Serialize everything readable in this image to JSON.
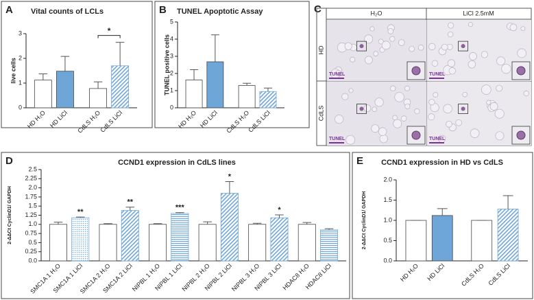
{
  "chart_data": [
    {
      "type": "bar",
      "panel": "A",
      "title": "Vital counts of LCLs",
      "y_label": "live cells",
      "categories": [
        "HD H₂O",
        "HD LiCl",
        "CdLS H₂O",
        "CdLS LiCl"
      ],
      "values": [
        1.12,
        1.48,
        0.78,
        1.7
      ],
      "errors": [
        0.25,
        0.6,
        0.27,
        0.95
      ],
      "colors": [
        "#ffffff",
        "#6fa6d8",
        "#ffffff",
        "#6fa6d8"
      ],
      "fill_styles": [
        "solid",
        "solid",
        "solid",
        "diagonal"
      ],
      "ylim": [
        0,
        3
      ],
      "yticks": [
        0,
        1,
        2,
        3
      ],
      "annotation": "*"
    },
    {
      "type": "bar",
      "panel": "B",
      "title": "TUNEL Apoptotic Assay",
      "y_label": "TUNEL positive cells",
      "categories": [
        "HD H₂O",
        "HD LiCl",
        "CdLS H₂O",
        "CdLS LiCl"
      ],
      "values": [
        1.62,
        2.68,
        1.3,
        0.95
      ],
      "errors": [
        0.6,
        1.57,
        0.13,
        0.2
      ],
      "colors": [
        "#ffffff",
        "#6fa6d8",
        "#ffffff",
        "#6fa6d8"
      ],
      "fill_styles": [
        "solid",
        "solid",
        "solid",
        "diagonal"
      ],
      "ylim": [
        0,
        5
      ],
      "yticks": [
        0,
        1,
        2,
        3,
        4,
        5
      ]
    },
    {
      "type": "bar",
      "panel": "D",
      "title": "CCND1 expression in CdLS  lines",
      "y_label": "2-ΔΔCt CyclinD1/ GAPDH",
      "categories": [
        "SMC1A 1 H₂O",
        "SMC1A 1 LiCl",
        "SMC1A 2 H₂O",
        "SMC1A 2 LiCl",
        "NIPBL 1 H₂O",
        "NIPBL 1 LiCl",
        "NIPBL 2 H₂O",
        "NIPBL 2 LiCl",
        "NIPBL 3 H₂O",
        "NIPBL 3 LiCl",
        "HDAC8 H₂O",
        "HDAC8 LiCl"
      ],
      "values": [
        1.0,
        1.18,
        1.0,
        1.38,
        1.0,
        1.3,
        1.0,
        1.85,
        1.0,
        1.18,
        1.0,
        0.85
      ],
      "errors": [
        0.06,
        0.02,
        0.02,
        0.09,
        0.02,
        0.02,
        0.07,
        0.32,
        0.03,
        0.08,
        0.05,
        0.03
      ],
      "colors": [
        "#ffffff",
        "#6fa6d8",
        "#ffffff",
        "#6fa6d8",
        "#ffffff",
        "#6fa6d8",
        "#ffffff",
        "#6fa6d8",
        "#ffffff",
        "#6fa6d8",
        "#ffffff",
        "#6fa6d8"
      ],
      "fill_styles": [
        "solid",
        "dotted",
        "solid",
        "diagonal",
        "solid",
        "horizontal",
        "solid",
        "diagonal",
        "solid",
        "diagonal",
        "solid",
        "horizontal"
      ],
      "significance": [
        null,
        "**",
        null,
        "**",
        null,
        "***",
        null,
        "*",
        null,
        "*",
        null,
        null
      ],
      "ylim": [
        0,
        2.5
      ],
      "yticks": [
        {
          "value": 0,
          "label": "0.0"
        },
        0.25,
        0.5,
        0.75,
        {
          "value": 1,
          "label": "1.0"
        },
        1.25,
        1.5,
        1.75,
        {
          "value": 2,
          "label": "2.0"
        },
        2.25,
        2.5
      ]
    },
    {
      "type": "bar",
      "panel": "E",
      "title": "CCND1 expression in HD vs CdLS",
      "y_label": "2-ΔΔCt CyclinD1/ GAPDH",
      "categories": [
        "HD H₂O",
        "HD LiCl",
        "CdLS H₂O",
        "CdLS LiCl"
      ],
      "values": [
        1.0,
        1.12,
        1.0,
        1.28
      ],
      "errors": [
        0,
        0.17,
        0,
        0.33
      ],
      "colors": [
        "#ffffff",
        "#6fa6d8",
        "#ffffff",
        "#6fa6d8"
      ],
      "fill_styles": [
        "solid",
        "solid",
        "solid",
        "diagonal"
      ],
      "ylim": [
        0,
        2
      ],
      "yticks": [
        {
          "value": 0,
          "label": "0.0"
        },
        0.5,
        {
          "value": 1,
          "label": "1.0"
        },
        1.5,
        {
          "value": 2,
          "label": "2.0"
        }
      ]
    }
  ],
  "image_panel": {
    "panel": "C",
    "columns": [
      "H₂O",
      "LiCl 2.5mM"
    ],
    "rows": [
      "HD",
      "CdLS"
    ],
    "scale_label": "TUNEL"
  }
}
